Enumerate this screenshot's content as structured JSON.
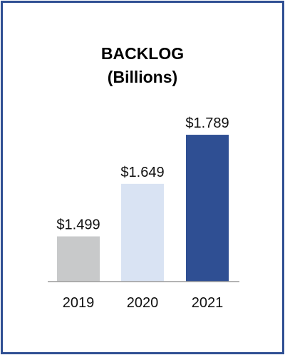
{
  "chart_data": {
    "type": "bar",
    "title": "BACKLOG",
    "subtitle": "(Billions)",
    "categories": [
      "2019",
      "2020",
      "2021"
    ],
    "values": [
      1.499,
      1.649,
      1.789
    ],
    "value_labels": [
      "$1.499",
      "$1.649",
      "$1.789"
    ],
    "bar_colors": [
      "#c8c9ca",
      "#d9e3f3",
      "#2f4f93"
    ],
    "xlabel": "",
    "ylabel": "",
    "ylim": [
      1.37,
      1.84
    ],
    "grid": false
  },
  "frame_color": "#2f4f93"
}
